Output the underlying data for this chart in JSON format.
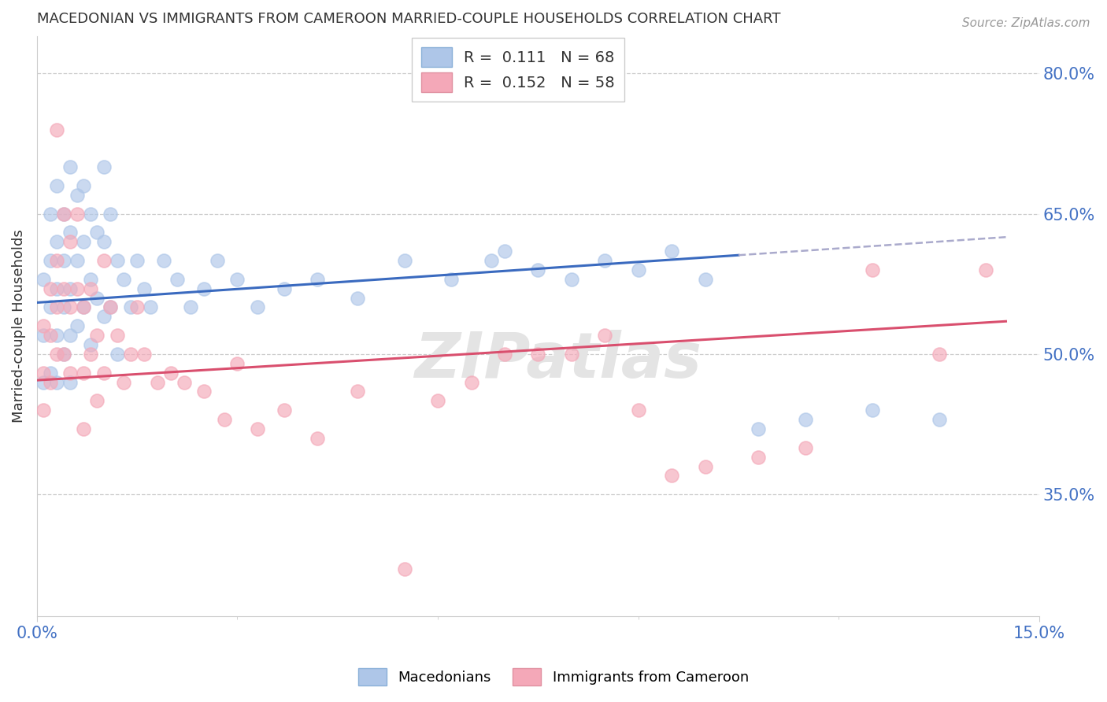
{
  "title": "MACEDONIAN VS IMMIGRANTS FROM CAMEROON MARRIED-COUPLE HOUSEHOLDS CORRELATION CHART",
  "source": "Source: ZipAtlas.com",
  "ylabel": "Married-couple Households",
  "xlim": [
    0.0,
    0.15
  ],
  "ylim": [
    0.22,
    0.84
  ],
  "ytick_positions": [
    0.35,
    0.5,
    0.65,
    0.8
  ],
  "ytick_labels": [
    "35.0%",
    "50.0%",
    "65.0%",
    "80.0%"
  ],
  "macedonian_color": "#aec6e8",
  "cameroon_color": "#f4a8b8",
  "trendline_macedonian_color": "#3a6abf",
  "trendline_cameroon_color": "#d94f6e",
  "dashed_color": "#aaaacc",
  "grid_color": "#cccccc",
  "background_color": "#ffffff",
  "watermark": "ZIPatlas",
  "mac_trend_x0": 0.0,
  "mac_trend_y0": 0.555,
  "mac_trend_x1": 0.145,
  "mac_trend_y1": 0.625,
  "cam_trend_x0": 0.0,
  "cam_trend_y0": 0.472,
  "cam_trend_x1": 0.145,
  "cam_trend_y1": 0.535,
  "mac_scatter_x": [
    0.001,
    0.001,
    0.001,
    0.002,
    0.002,
    0.002,
    0.002,
    0.003,
    0.003,
    0.003,
    0.003,
    0.003,
    0.004,
    0.004,
    0.004,
    0.004,
    0.005,
    0.005,
    0.005,
    0.005,
    0.005,
    0.006,
    0.006,
    0.006,
    0.007,
    0.007,
    0.007,
    0.008,
    0.008,
    0.008,
    0.009,
    0.009,
    0.01,
    0.01,
    0.01,
    0.011,
    0.011,
    0.012,
    0.012,
    0.013,
    0.014,
    0.015,
    0.016,
    0.017,
    0.019,
    0.021,
    0.023,
    0.025,
    0.027,
    0.03,
    0.033,
    0.037,
    0.042,
    0.048,
    0.055,
    0.062,
    0.068,
    0.07,
    0.075,
    0.08,
    0.085,
    0.09,
    0.095,
    0.1,
    0.108,
    0.115,
    0.125,
    0.135
  ],
  "mac_scatter_y": [
    0.58,
    0.52,
    0.47,
    0.65,
    0.6,
    0.55,
    0.48,
    0.68,
    0.62,
    0.57,
    0.52,
    0.47,
    0.65,
    0.6,
    0.55,
    0.5,
    0.7,
    0.63,
    0.57,
    0.52,
    0.47,
    0.67,
    0.6,
    0.53,
    0.68,
    0.62,
    0.55,
    0.65,
    0.58,
    0.51,
    0.63,
    0.56,
    0.7,
    0.62,
    0.54,
    0.65,
    0.55,
    0.6,
    0.5,
    0.58,
    0.55,
    0.6,
    0.57,
    0.55,
    0.6,
    0.58,
    0.55,
    0.57,
    0.6,
    0.58,
    0.55,
    0.57,
    0.58,
    0.56,
    0.6,
    0.58,
    0.6,
    0.61,
    0.59,
    0.58,
    0.6,
    0.59,
    0.61,
    0.58,
    0.42,
    0.43,
    0.44,
    0.43
  ],
  "cam_scatter_x": [
    0.001,
    0.001,
    0.001,
    0.002,
    0.002,
    0.002,
    0.003,
    0.003,
    0.003,
    0.003,
    0.004,
    0.004,
    0.004,
    0.005,
    0.005,
    0.005,
    0.006,
    0.006,
    0.007,
    0.007,
    0.007,
    0.008,
    0.008,
    0.009,
    0.009,
    0.01,
    0.01,
    0.011,
    0.012,
    0.013,
    0.014,
    0.015,
    0.016,
    0.018,
    0.02,
    0.022,
    0.025,
    0.028,
    0.03,
    0.033,
    0.037,
    0.042,
    0.048,
    0.055,
    0.06,
    0.065,
    0.07,
    0.075,
    0.08,
    0.085,
    0.09,
    0.095,
    0.1,
    0.108,
    0.115,
    0.125,
    0.135,
    0.142
  ],
  "cam_scatter_y": [
    0.53,
    0.48,
    0.44,
    0.57,
    0.52,
    0.47,
    0.74,
    0.6,
    0.55,
    0.5,
    0.65,
    0.57,
    0.5,
    0.62,
    0.55,
    0.48,
    0.65,
    0.57,
    0.55,
    0.48,
    0.42,
    0.57,
    0.5,
    0.52,
    0.45,
    0.6,
    0.48,
    0.55,
    0.52,
    0.47,
    0.5,
    0.55,
    0.5,
    0.47,
    0.48,
    0.47,
    0.46,
    0.43,
    0.49,
    0.42,
    0.44,
    0.41,
    0.46,
    0.27,
    0.45,
    0.47,
    0.5,
    0.5,
    0.5,
    0.52,
    0.44,
    0.37,
    0.38,
    0.39,
    0.4,
    0.59,
    0.5,
    0.59
  ]
}
